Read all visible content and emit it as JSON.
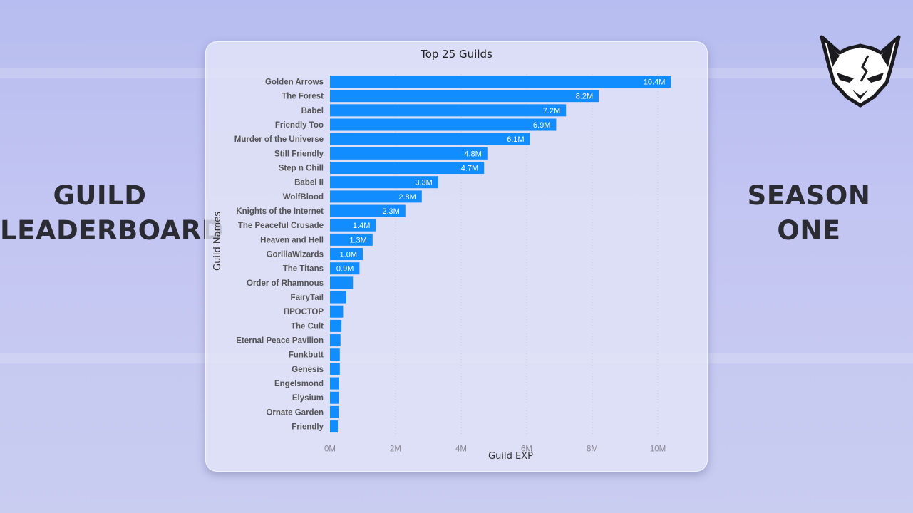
{
  "left_title": [
    "GUILD",
    "LEADERBOARD"
  ],
  "right_title": [
    "SEASON",
    "ONE"
  ],
  "logo_icon": "fox-head-logo-icon",
  "colors": {
    "bar": "#118dff",
    "grid": "#c8c8dc",
    "background": "#bfc3f1"
  },
  "chart_data": {
    "type": "bar",
    "orientation": "horizontal",
    "title": "Top 25 Guilds",
    "xlabel": "Guild EXP",
    "ylabel": "Guild Names",
    "xlim": [
      0,
      11000000
    ],
    "xticks": [
      0,
      2000000,
      4000000,
      6000000,
      8000000,
      10000000
    ],
    "xtick_labels": [
      "0M",
      "2M",
      "4M",
      "6M",
      "8M",
      "10M"
    ],
    "grid": "vertical dotted",
    "categories": [
      "Golden Arrows",
      "The Forest",
      "Babel",
      "Friendly Too",
      "Murder of the Universe",
      "Still Friendly",
      "Step n Chill",
      "Babel II",
      "WolfBlood",
      "Knights of the Internet",
      "The Peaceful Crusade",
      "Heaven and Hell",
      "GorillaWizards",
      "The Titans",
      "Order of Rhamnous",
      "FairyTail",
      "ПРОСТОР",
      "The Cult",
      "Eternal Peace Pavilion",
      "Funkbutt",
      "Genesis",
      "Engelsmond",
      "Elysium",
      "Ornate Garden",
      "Friendly"
    ],
    "values": [
      10400000,
      8200000,
      7200000,
      6900000,
      6100000,
      4800000,
      4700000,
      3300000,
      2800000,
      2300000,
      1400000,
      1300000,
      1000000,
      900000,
      700000,
      500000,
      400000,
      350000,
      320000,
      300000,
      300000,
      280000,
      270000,
      270000,
      240000
    ],
    "data_labels": [
      "10.4M",
      "8.2M",
      "7.2M",
      "6.9M",
      "6.1M",
      "4.8M",
      "4.7M",
      "3.3M",
      "2.8M",
      "2.3M",
      "1.4M",
      "1.3M",
      "1.0M",
      "0.9M",
      "",
      "",
      "",
      "",
      "",
      "",
      "",
      "",
      "",
      "",
      ""
    ]
  }
}
